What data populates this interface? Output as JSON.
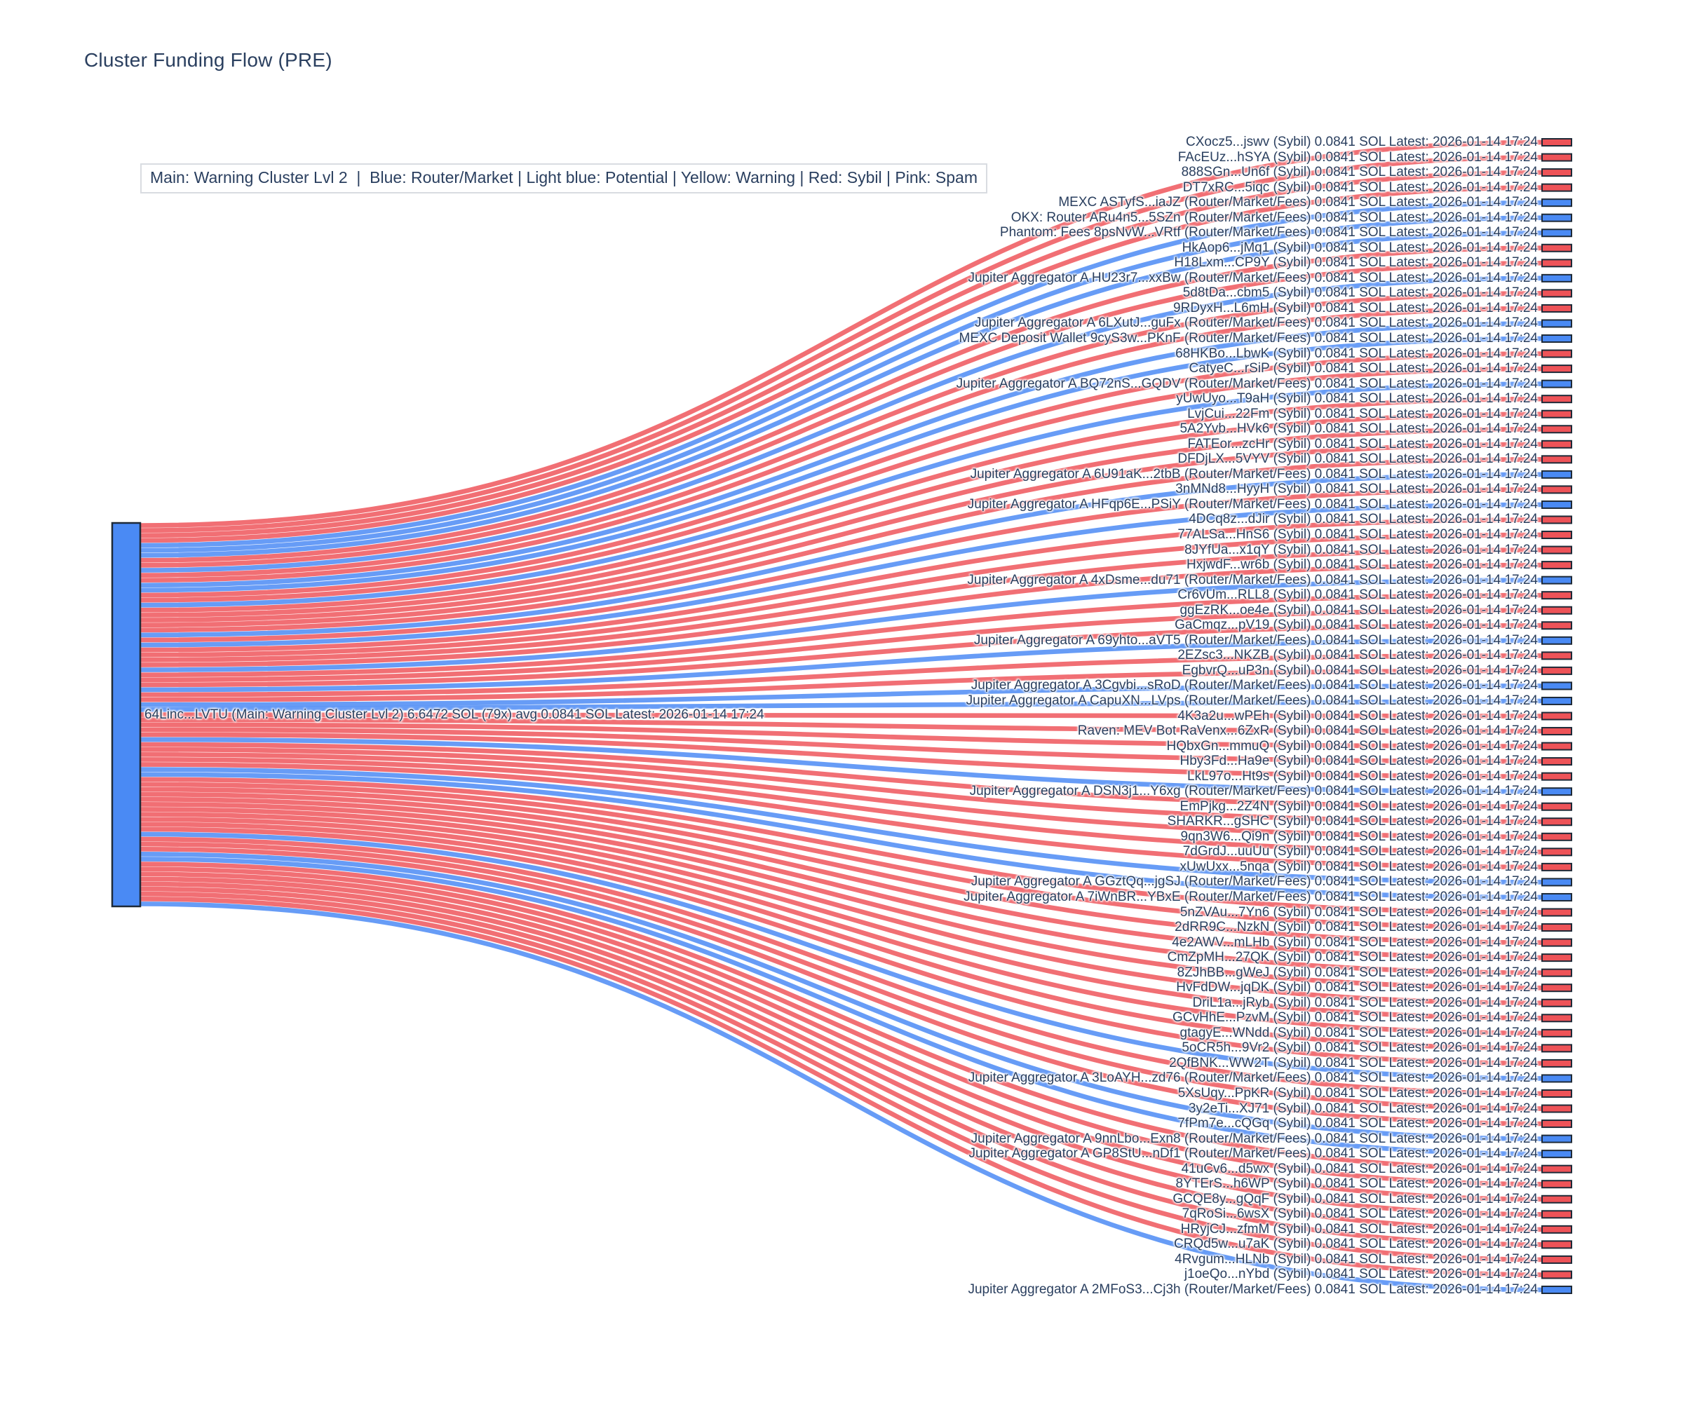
{
  "title": "Cluster Funding Flow (PRE)",
  "legend": "Main: Warning Cluster Lvl 2  |  Blue: Router/Market | Light blue: Potential | Yellow: Warning | Red: Sybil | Pink: Spam",
  "chart_data": {
    "type": "sankey",
    "title": "Cluster Funding Flow (PRE)",
    "legend_position": "top-left-inside",
    "colors": {
      "sybil_node": "#EE5358",
      "router_node": "#4A8AF4",
      "sybil_link": "rgba(238,86,92,0.85)",
      "router_link": "rgba(76,139,245,0.85)",
      "node_border": "#1e2a38",
      "text": "#2a3f5f"
    },
    "source": {
      "name": "64Linc...LVTU",
      "category": "Main: Warning Cluster Lvl 2",
      "total_sol": "6.6472 SOL",
      "count": "79x",
      "avg_sol": "0.0841 SOL",
      "latest": "2026-01-14 17:24",
      "color_key": "router"
    },
    "link_amount_sol": "0.0841 SOL",
    "link_value": 0.0841,
    "latest": "2026-01-14 17:24",
    "targets": [
      {
        "name": "CXocz5...jswv",
        "type": "Sybil"
      },
      {
        "name": "FAcEUz...hSYA",
        "type": "Sybil"
      },
      {
        "name": "888SGn...Un6f",
        "type": "Sybil"
      },
      {
        "name": "DT7xRC...5iqc",
        "type": "Sybil"
      },
      {
        "name": "MEXC ASTyfS...iaJZ",
        "type": "Router/Market/Fees"
      },
      {
        "name": "OKX: Router ARu4n5...5SZn",
        "type": "Router/Market/Fees"
      },
      {
        "name": "Phantom: Fees 8psNvW...VRtf",
        "type": "Router/Market/Fees"
      },
      {
        "name": "HkAop6...jMq1",
        "type": "Sybil"
      },
      {
        "name": "H18Lxm...CP9Y",
        "type": "Sybil"
      },
      {
        "name": "Jupiter Aggregator A HU23r7...xxBw",
        "type": "Router/Market/Fees"
      },
      {
        "name": "5d8tDa...cbm5",
        "type": "Sybil"
      },
      {
        "name": "9RDyxH...L6mH",
        "type": "Sybil"
      },
      {
        "name": "Jupiter Aggregator A 6LXutJ...guFx",
        "type": "Router/Market/Fees"
      },
      {
        "name": "MEXC Deposit Wallet 9cyS3w...PKnF",
        "type": "Router/Market/Fees"
      },
      {
        "name": "68HKBo...LbwK",
        "type": "Sybil"
      },
      {
        "name": "CatyeC...rSiP",
        "type": "Sybil"
      },
      {
        "name": "Jupiter Aggregator A BQ72nS...GQDV",
        "type": "Router/Market/Fees"
      },
      {
        "name": "yUwUyo...T9aH",
        "type": "Sybil"
      },
      {
        "name": "LvjCui...22Fm",
        "type": "Sybil"
      },
      {
        "name": "5A2Yvb...HVk6",
        "type": "Sybil"
      },
      {
        "name": "FATEor...zcHr",
        "type": "Sybil"
      },
      {
        "name": "DFDjLX...5VYV",
        "type": "Sybil"
      },
      {
        "name": "Jupiter Aggregator A 6U91aK...2tbB",
        "type": "Router/Market/Fees"
      },
      {
        "name": "3nMNd8...HyyH",
        "type": "Sybil"
      },
      {
        "name": "Jupiter Aggregator A HFqp6E...PSiY",
        "type": "Router/Market/Fees"
      },
      {
        "name": "4DCq8z...dJir",
        "type": "Sybil"
      },
      {
        "name": "77ALSa...HnS6",
        "type": "Sybil"
      },
      {
        "name": "8JYfUa...x1qY",
        "type": "Sybil"
      },
      {
        "name": "HxjwdF...wr6b",
        "type": "Sybil"
      },
      {
        "name": "Jupiter Aggregator A 4xDsme...du71",
        "type": "Router/Market/Fees"
      },
      {
        "name": "Cr6vUm...RLL8",
        "type": "Sybil"
      },
      {
        "name": "ggEzRK...oe4e",
        "type": "Sybil"
      },
      {
        "name": "GaCmqz...pV19",
        "type": "Sybil"
      },
      {
        "name": "Jupiter Aggregator A 69yhto...aVT5",
        "type": "Router/Market/Fees"
      },
      {
        "name": "2EZsc3...NKZB",
        "type": "Sybil"
      },
      {
        "name": "EgbvrQ...uP3n",
        "type": "Sybil"
      },
      {
        "name": "Jupiter Aggregator A 3Cgvbi...sRoD",
        "type": "Router/Market/Fees"
      },
      {
        "name": "Jupiter Aggregator A CapuXN...LVps",
        "type": "Router/Market/Fees"
      },
      {
        "name": "4K3a2u...wPEh",
        "type": "Sybil"
      },
      {
        "name": "Raven: MEV Bot RaVenx...6ZxR",
        "type": "Sybil"
      },
      {
        "name": "HQbxGn...mmuQ",
        "type": "Sybil"
      },
      {
        "name": "Hby3Fd...Ha9e",
        "type": "Sybil"
      },
      {
        "name": "LkL97o...Ht9s",
        "type": "Sybil"
      },
      {
        "name": "Jupiter Aggregator A DSN3j1...Y6xg",
        "type": "Router/Market/Fees"
      },
      {
        "name": "EmPjkg...2Z4N",
        "type": "Sybil"
      },
      {
        "name": "SHARKR...gSHC",
        "type": "Sybil"
      },
      {
        "name": "9qn3W6...Qi9n",
        "type": "Sybil"
      },
      {
        "name": "7dGrdJ...uuUu",
        "type": "Sybil"
      },
      {
        "name": "xUwUxx...5nqa",
        "type": "Sybil"
      },
      {
        "name": "Jupiter Aggregator A GGztQq...jgSJ",
        "type": "Router/Market/Fees"
      },
      {
        "name": "Jupiter Aggregator A 7iWnBR...YBxE",
        "type": "Router/Market/Fees"
      },
      {
        "name": "5nZVAu...7Yn6",
        "type": "Sybil"
      },
      {
        "name": "2dRR9C...NzkN",
        "type": "Sybil"
      },
      {
        "name": "4e2AWV...mLHb",
        "type": "Sybil"
      },
      {
        "name": "CmZpMH...27QK",
        "type": "Sybil"
      },
      {
        "name": "8ZJhBB...gWeJ",
        "type": "Sybil"
      },
      {
        "name": "HvFdDW...jqDK",
        "type": "Sybil"
      },
      {
        "name": "DriL1a...jRyb",
        "type": "Sybil"
      },
      {
        "name": "GCvHhE...PzvM",
        "type": "Sybil"
      },
      {
        "name": "gtagyE...WNdd",
        "type": "Sybil"
      },
      {
        "name": "5oCR5h...9Vr2",
        "type": "Sybil"
      },
      {
        "name": "2QfBNK...WW2T",
        "type": "Sybil"
      },
      {
        "name": "Jupiter Aggregator A 3LoAYH...zd76",
        "type": "Router/Market/Fees"
      },
      {
        "name": "5XsUqy...PpKR",
        "type": "Sybil"
      },
      {
        "name": "3y2eTi...XJ71",
        "type": "Sybil"
      },
      {
        "name": "7fPm7e...cQGq",
        "type": "Sybil"
      },
      {
        "name": "Jupiter Aggregator A 9nnLbo...Exn8",
        "type": "Router/Market/Fees"
      },
      {
        "name": "Jupiter Aggregator A GP8StU...nDf1",
        "type": "Router/Market/Fees"
      },
      {
        "name": "41uCv6...d5wx",
        "type": "Sybil"
      },
      {
        "name": "8YTErS...h6WP",
        "type": "Sybil"
      },
      {
        "name": "GCQE8y...gQqF",
        "type": "Sybil"
      },
      {
        "name": "7qRoSi...6wsX",
        "type": "Sybil"
      },
      {
        "name": "HRyjCJ...zfmM",
        "type": "Sybil"
      },
      {
        "name": "CRQd5w...u7aK",
        "type": "Sybil"
      },
      {
        "name": "4Rvgum...HLNb",
        "type": "Sybil"
      },
      {
        "name": "j1oeQo...nYbd",
        "type": "Sybil"
      },
      {
        "name": "Jupiter Aggregator A 2MFoS3...Cj3h",
        "type": "Router/Market/Fees"
      }
    ]
  }
}
